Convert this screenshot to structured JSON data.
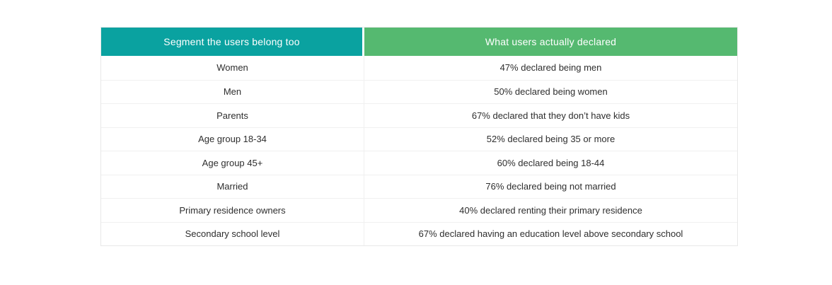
{
  "colors": {
    "header_left_bg": "#0aa2a0",
    "header_right_bg": "#55b970",
    "header_text": "#ffffff",
    "cell_text": "#2e2e2e",
    "row_border": "#f0f0f0",
    "outer_border": "#e8e8e8"
  },
  "table": {
    "headers": [
      {
        "label": "Segment the users belong too"
      },
      {
        "label": "What users actually declared"
      }
    ],
    "rows": [
      {
        "segment": "Women",
        "declared": "47% declared being men"
      },
      {
        "segment": "Men",
        "declared": "50% declared being women"
      },
      {
        "segment": "Parents",
        "declared": "67% declared that they don’t have kids"
      },
      {
        "segment": "Age group 18-34",
        "declared": "52% declared being 35 or more"
      },
      {
        "segment": "Age group 45+",
        "declared": "60% declared being 18-44"
      },
      {
        "segment": "Married",
        "declared": "76% declared being not married"
      },
      {
        "segment": "Primary residence owners",
        "declared": "40% declared renting their primary residence"
      },
      {
        "segment": "Secondary school level",
        "declared": "67% declared having an education level above secondary school"
      }
    ]
  },
  "chart_data": {
    "type": "table",
    "columns": [
      "Segment the users belong too",
      "What users actually declared"
    ],
    "rows": [
      [
        "Women",
        "47% declared being men"
      ],
      [
        "Men",
        "50% declared being women"
      ],
      [
        "Parents",
        "67% declared that they don’t have kids"
      ],
      [
        "Age group 18-34",
        "52% declared being 35 or more"
      ],
      [
        "Age group 45+",
        "60% declared being 18-44"
      ],
      [
        "Married",
        "76% declared being not married"
      ],
      [
        "Primary residence owners",
        "40% declared renting their primary residence"
      ],
      [
        "Secondary school level",
        "67% declared having an education level above secondary school"
      ]
    ]
  }
}
